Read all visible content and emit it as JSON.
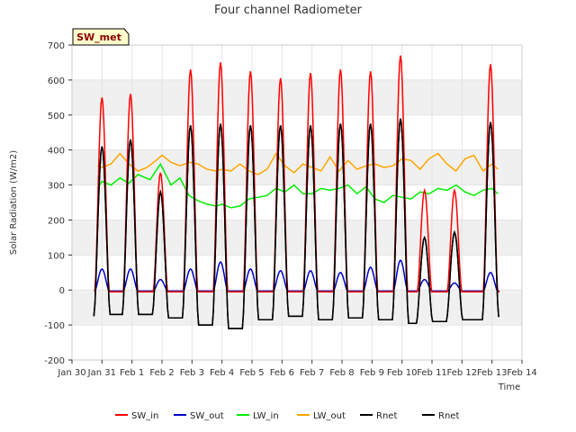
{
  "chart_data": {
    "type": "line",
    "title": "Four channel Radiometer",
    "xlabel": "Time",
    "ylabel": "Solar Radiation (W/m2)",
    "badge": "SW_met",
    "xlim": [
      0,
      15
    ],
    "ylim": [
      -200,
      700
    ],
    "yticks": [
      -200,
      -100,
      0,
      100,
      200,
      300,
      400,
      500,
      600,
      700
    ],
    "xticks": [
      0,
      1,
      2,
      3,
      4,
      5,
      6,
      7,
      8,
      9,
      10,
      11,
      12,
      13,
      14,
      15
    ],
    "xtick_labels": [
      "Jan 30",
      "Jan 31",
      "Feb 1",
      "Feb 2",
      "Feb 3",
      "Feb 4",
      "Feb 5",
      "Feb 6",
      "Feb 7",
      "Feb 8",
      "Feb 9",
      "Feb 10",
      "Feb 11",
      "Feb 12",
      "Feb 13",
      "Feb 14"
    ],
    "background_bands": true,
    "series": [
      {
        "name": "SW_in",
        "color": "#ff0000",
        "peaks": [
          [
            1.0,
            550
          ],
          [
            1.95,
            560
          ],
          [
            2.95,
            335
          ],
          [
            3.95,
            630
          ],
          [
            4.95,
            650
          ],
          [
            5.95,
            625
          ],
          [
            6.95,
            605
          ],
          [
            7.95,
            620
          ],
          [
            8.95,
            630
          ],
          [
            9.95,
            625
          ],
          [
            10.95,
            670
          ],
          [
            11.75,
            285
          ],
          [
            12.75,
            285
          ],
          [
            13.95,
            645
          ]
        ],
        "night": -5
      },
      {
        "name": "SW_out",
        "color": "#0000cc",
        "peaks": [
          [
            1.0,
            60
          ],
          [
            1.95,
            60
          ],
          [
            2.95,
            30
          ],
          [
            3.95,
            60
          ],
          [
            4.95,
            80
          ],
          [
            5.95,
            60
          ],
          [
            6.95,
            55
          ],
          [
            7.95,
            55
          ],
          [
            8.95,
            50
          ],
          [
            9.95,
            65
          ],
          [
            10.95,
            85
          ],
          [
            11.75,
            30
          ],
          [
            12.75,
            20
          ],
          [
            13.95,
            50
          ]
        ],
        "night": -3
      },
      {
        "name": "LW_in",
        "color": "#00ee00",
        "x": [
          0.85,
          1.0,
          1.3,
          1.6,
          1.9,
          2.2,
          2.6,
          2.95,
          3.3,
          3.6,
          3.9,
          4.2,
          4.5,
          4.8,
          5.0,
          5.3,
          5.6,
          5.9,
          6.2,
          6.5,
          6.8,
          7.1,
          7.4,
          7.7,
          8.0,
          8.3,
          8.6,
          8.9,
          9.2,
          9.5,
          9.8,
          10.1,
          10.4,
          10.7,
          11.0,
          11.3,
          11.6,
          11.9,
          12.2,
          12.5,
          12.8,
          13.1,
          13.4,
          13.7,
          14.0,
          14.2
        ],
        "y": [
          290,
          310,
          300,
          320,
          305,
          330,
          315,
          360,
          300,
          320,
          270,
          255,
          245,
          240,
          245,
          235,
          240,
          260,
          265,
          270,
          290,
          280,
          300,
          275,
          275,
          290,
          285,
          290,
          300,
          275,
          295,
          260,
          250,
          270,
          265,
          260,
          280,
          275,
          290,
          285,
          300,
          280,
          270,
          285,
          290,
          275
        ]
      },
      {
        "name": "LW_out",
        "color": "#ffa500",
        "x": [
          0.85,
          1.0,
          1.3,
          1.6,
          1.9,
          2.2,
          2.5,
          2.8,
          3.0,
          3.3,
          3.6,
          3.9,
          4.2,
          4.5,
          4.8,
          5.0,
          5.3,
          5.6,
          5.9,
          6.2,
          6.5,
          6.8,
          7.1,
          7.4,
          7.7,
          8.0,
          8.3,
          8.6,
          8.9,
          9.2,
          9.5,
          9.8,
          10.1,
          10.4,
          10.7,
          11.0,
          11.3,
          11.6,
          11.9,
          12.2,
          12.5,
          12.8,
          13.1,
          13.4,
          13.7,
          14.0,
          14.2
        ],
        "y": [
          355,
          350,
          360,
          390,
          360,
          340,
          350,
          370,
          385,
          365,
          355,
          365,
          360,
          345,
          340,
          345,
          340,
          360,
          340,
          330,
          345,
          390,
          355,
          335,
          360,
          350,
          340,
          380,
          340,
          370,
          345,
          355,
          360,
          350,
          355,
          375,
          370,
          345,
          375,
          390,
          360,
          340,
          375,
          385,
          340,
          360,
          345
        ]
      },
      {
        "name": "Rnet",
        "color": "#000000",
        "peaks": [
          [
            1.0,
            410
          ],
          [
            1.95,
            430
          ],
          [
            2.95,
            280
          ],
          [
            3.95,
            470
          ],
          [
            4.95,
            475
          ],
          [
            5.95,
            470
          ],
          [
            6.95,
            470
          ],
          [
            7.95,
            470
          ],
          [
            8.95,
            475
          ],
          [
            9.95,
            475
          ],
          [
            10.95,
            490
          ],
          [
            11.75,
            150
          ],
          [
            12.75,
            165
          ],
          [
            13.95,
            480
          ]
        ],
        "night_levels": [
          -75,
          -70,
          -70,
          -80,
          -100,
          -110,
          -85,
          -75,
          -85,
          -80,
          -85,
          -95,
          -90,
          -85,
          -75
        ]
      },
      {
        "name": "Rnet",
        "color": "#000000",
        "peaks": [
          [
            1.0,
            410
          ],
          [
            1.95,
            430
          ],
          [
            2.95,
            280
          ],
          [
            3.95,
            470
          ],
          [
            4.95,
            475
          ],
          [
            5.95,
            470
          ],
          [
            6.95,
            470
          ],
          [
            7.95,
            470
          ],
          [
            8.95,
            475
          ],
          [
            9.95,
            475
          ],
          [
            10.95,
            490
          ],
          [
            11.75,
            150
          ],
          [
            12.75,
            165
          ],
          [
            13.95,
            480
          ]
        ],
        "night_levels": [
          -75,
          -70,
          -70,
          -80,
          -100,
          -110,
          -85,
          -75,
          -85,
          -80,
          -85,
          -95,
          -90,
          -85,
          -75
        ]
      }
    ]
  }
}
